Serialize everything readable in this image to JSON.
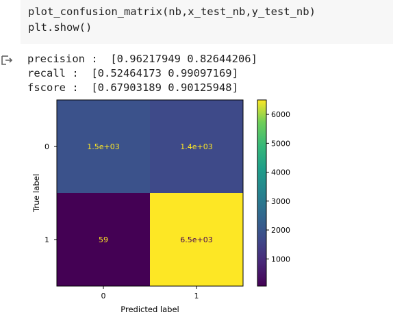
{
  "code_cell": {
    "lines": [
      "plot_confusion_matrix(nb,x_test_nb,y_test_nb)",
      "plt.show()"
    ]
  },
  "output": {
    "icon": "output-arrow-icon",
    "lines": [
      "precision :  [0.96217949 0.82644206]",
      "recall :  [0.52464173 0.99097169]",
      "fscore :  [0.67903189 0.90125948]"
    ]
  },
  "chart_data": {
    "type": "heatmap",
    "xlabel": "Predicted label",
    "ylabel": "True label",
    "x_categories": [
      "0",
      "1"
    ],
    "y_categories": [
      "0",
      "1"
    ],
    "values": [
      [
        1500,
        1400
      ],
      [
        59,
        6500
      ]
    ],
    "cell_labels": [
      [
        "1.5e+03",
        "1.4e+03"
      ],
      [
        "59",
        "6.5e+03"
      ]
    ],
    "colormap": "viridis",
    "colorbar": {
      "range": [
        59,
        6500
      ],
      "ticks": [
        "1000",
        "2000",
        "3000",
        "4000",
        "5000",
        "6000"
      ]
    },
    "colors": {
      "cell_00": "#3b528b",
      "cell_01": "#3e4a89",
      "cell_10": "#440154",
      "cell_11": "#fde725",
      "label_on_dark": "#fde725",
      "label_on_light": "#440154"
    }
  }
}
